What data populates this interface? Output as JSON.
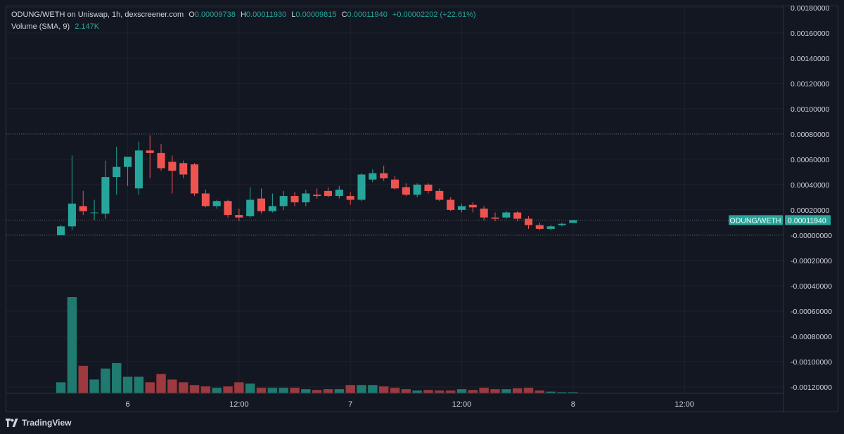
{
  "legend": {
    "symbol_title": "ODUNG/WETH on Uniswap, 1h, dexscreener.com",
    "o_label": "O",
    "o_value": "0.00009738",
    "h_label": "H",
    "h_value": "0.00011930",
    "l_label": "L",
    "l_value": "0.00009815",
    "c_label": "C",
    "c_value": "0.00011940",
    "change": "+0.00002202 (+22.61%)",
    "volume_label": "Volume (SMA, 9)",
    "volume_value": "2.147K"
  },
  "price_tag": {
    "symbol": "ODUNG/WETH",
    "value": "0.00011940"
  },
  "branding": {
    "name": "TradingView"
  },
  "colors": {
    "background": "#131722",
    "up": "#26a69a",
    "down": "#ef5350",
    "up_volume": "#1f7a70",
    "down_volume": "#9c3a3f",
    "grid": "#1e222d",
    "text": "#d1d4dc"
  },
  "chart_data": {
    "type": "candlestick",
    "interval": "1h",
    "y_ticks": [
      "0.00180000",
      "0.00160000",
      "0.00140000",
      "0.00120000",
      "0.00100000",
      "0.00080000",
      "0.00060000",
      "0.00040000",
      "0.00020000",
      "-0.00000000",
      "-0.00020000",
      "-0.00040000",
      "-0.00060000",
      "-0.00080000",
      "-0.00100000",
      "-0.00120000"
    ],
    "ylim": [
      -0.00125,
      0.00181
    ],
    "x_ticks": [
      {
        "label": "6",
        "x": 6
      },
      {
        "label": "12:00",
        "x": 16
      },
      {
        "label": "7",
        "x": 26
      },
      {
        "label": "12:00",
        "x": 36
      },
      {
        "label": "8",
        "x": 46
      },
      {
        "label": "12:00",
        "x": 56
      }
    ],
    "x_range": [
      -4.9,
      64.9
    ],
    "dotted_levels": [
      0.0008,
      0.0001194,
      0
    ],
    "candles": [
      {
        "o": 0.0,
        "h": 8e-05,
        "l": 0.0,
        "c": 7e-05
      },
      {
        "o": 7e-05,
        "h": 0.00063,
        "l": 4e-05,
        "c": 0.00025
      },
      {
        "o": 0.00023,
        "h": 0.00035,
        "l": 0.00016,
        "c": 0.00019
      },
      {
        "o": 0.00018,
        "h": 0.00028,
        "l": 0.00012,
        "c": 0.00018
      },
      {
        "o": 0.00017,
        "h": 0.00059,
        "l": 0.00013,
        "c": 0.00046
      },
      {
        "o": 0.00046,
        "h": 0.0007,
        "l": 0.00032,
        "c": 0.00054
      },
      {
        "o": 0.00054,
        "h": 0.00061,
        "l": 0.00039,
        "c": 0.00062
      },
      {
        "o": 0.00037,
        "h": 0.00074,
        "l": 0.00032,
        "c": 0.00067
      },
      {
        "o": 0.00067,
        "h": 0.00079,
        "l": 0.00045,
        "c": 0.00065
      },
      {
        "o": 0.00065,
        "h": 0.00072,
        "l": 0.00051,
        "c": 0.00053
      },
      {
        "o": 0.00058,
        "h": 0.00063,
        "l": 0.00033,
        "c": 0.00051
      },
      {
        "o": 0.00057,
        "h": 0.00059,
        "l": 0.00045,
        "c": 0.00048
      },
      {
        "o": 0.00056,
        "h": 0.00057,
        "l": 0.00031,
        "c": 0.00033
      },
      {
        "o": 0.00033,
        "h": 0.00036,
        "l": 0.00022,
        "c": 0.00023
      },
      {
        "o": 0.00023,
        "h": 0.00028,
        "l": 0.00021,
        "c": 0.00027
      },
      {
        "o": 0.00027,
        "h": 0.00028,
        "l": 0.00014,
        "c": 0.00016
      },
      {
        "o": 0.00016,
        "h": 0.00021,
        "l": 0.00011,
        "c": 0.00014
      },
      {
        "o": 0.00015,
        "h": 0.00038,
        "l": 0.00014,
        "c": 0.00028
      },
      {
        "o": 0.00029,
        "h": 0.00037,
        "l": 0.00017,
        "c": 0.00019
      },
      {
        "o": 0.00019,
        "h": 0.00033,
        "l": 0.00018,
        "c": 0.00023
      },
      {
        "o": 0.00023,
        "h": 0.00035,
        "l": 0.0002,
        "c": 0.00031
      },
      {
        "o": 0.00031,
        "h": 0.00034,
        "l": 0.00023,
        "c": 0.00026
      },
      {
        "o": 0.00026,
        "h": 0.00036,
        "l": 0.00023,
        "c": 0.00033
      },
      {
        "o": 0.00032,
        "h": 0.00037,
        "l": 0.00029,
        "c": 0.00031
      },
      {
        "o": 0.00035,
        "h": 0.00038,
        "l": 0.0003,
        "c": 0.00031
      },
      {
        "o": 0.00031,
        "h": 0.00039,
        "l": 0.00029,
        "c": 0.00036
      },
      {
        "o": 0.00031,
        "h": 0.00034,
        "l": 0.00024,
        "c": 0.00028
      },
      {
        "o": 0.00028,
        "h": 0.00049,
        "l": 0.00027,
        "c": 0.00048
      },
      {
        "o": 0.00044,
        "h": 0.00052,
        "l": 0.00042,
        "c": 0.00049
      },
      {
        "o": 0.00049,
        "h": 0.00055,
        "l": 0.00043,
        "c": 0.00045
      },
      {
        "o": 0.00044,
        "h": 0.00047,
        "l": 0.00036,
        "c": 0.00037
      },
      {
        "o": 0.00038,
        "h": 0.00041,
        "l": 0.00031,
        "c": 0.00032
      },
      {
        "o": 0.00032,
        "h": 0.00041,
        "l": 0.0003,
        "c": 0.0004
      },
      {
        "o": 0.0004,
        "h": 0.00041,
        "l": 0.00033,
        "c": 0.00035
      },
      {
        "o": 0.00035,
        "h": 0.00037,
        "l": 0.00027,
        "c": 0.00028
      },
      {
        "o": 0.00028,
        "h": 0.0003,
        "l": 0.00019,
        "c": 0.0002
      },
      {
        "o": 0.0002,
        "h": 0.00025,
        "l": 0.00018,
        "c": 0.00023
      },
      {
        "o": 0.00024,
        "h": 0.00026,
        "l": 0.00018,
        "c": 0.00022
      },
      {
        "o": 0.00021,
        "h": 0.00023,
        "l": 0.00012,
        "c": 0.00014
      },
      {
        "o": 0.00014,
        "h": 0.00018,
        "l": 0.00011,
        "c": 0.00013
      },
      {
        "o": 0.00014,
        "h": 0.00019,
        "l": 0.00013,
        "c": 0.00018
      },
      {
        "o": 0.00018,
        "h": 0.00019,
        "l": 0.00011,
        "c": 0.00013
      },
      {
        "o": 0.00013,
        "h": 0.00015,
        "l": 5e-05,
        "c": 8e-05
      },
      {
        "o": 8e-05,
        "h": 0.0001,
        "l": 4e-05,
        "c": 5e-05
      },
      {
        "o": 5e-05,
        "h": 8e-05,
        "l": 4e-05,
        "c": 7e-05
      },
      {
        "o": 8e-05,
        "h": 0.0001,
        "l": 7e-05,
        "c": 9e-05
      },
      {
        "o": 9.738e-05,
        "h": 0.0001193,
        "l": 9.815e-05,
        "c": 0.0001194
      }
    ],
    "volume": [
      0.04,
      0.35,
      0.1,
      0.05,
      0.09,
      0.11,
      0.06,
      0.06,
      0.04,
      0.07,
      0.05,
      0.04,
      0.03,
      0.025,
      0.02,
      0.025,
      0.04,
      0.035,
      0.02,
      0.02,
      0.02,
      0.02,
      0.015,
      0.012,
      0.015,
      0.015,
      0.03,
      0.03,
      0.03,
      0.025,
      0.02,
      0.015,
      0.01,
      0.012,
      0.01,
      0.01,
      0.015,
      0.012,
      0.02,
      0.015,
      0.015,
      0.018,
      0.02,
      0.01,
      0.006,
      0.004,
      0.004
    ]
  }
}
